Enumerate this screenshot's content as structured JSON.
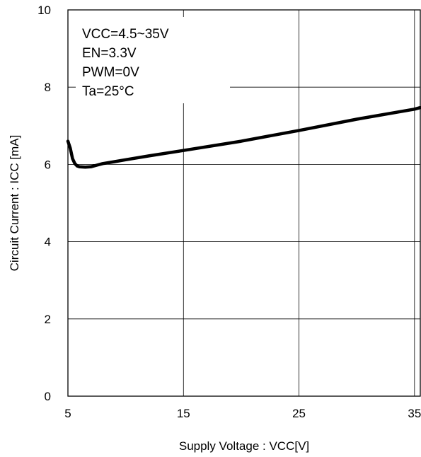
{
  "chart_data": {
    "type": "line",
    "title": "",
    "xlabel": "Supply Voltage : VCC[V]",
    "ylabel": "Circuit Current : ICC [mA]",
    "xlim": [
      5,
      35.5
    ],
    "ylim": [
      0,
      10
    ],
    "x_ticks": [
      5,
      15,
      25,
      35
    ],
    "x_tick_labels": [
      "5",
      "15",
      "25",
      "35"
    ],
    "y_ticks": [
      0,
      2,
      4,
      6,
      8,
      10
    ],
    "y_tick_labels": [
      "0",
      "2",
      "4",
      "6",
      "8",
      "10"
    ],
    "grid": true,
    "annotations": [
      "VCC=4.5~35V",
      "EN=3.3V",
      "PWM=0V",
      "Ta=25°C"
    ],
    "series": [
      {
        "x": [
          5.0,
          5.2,
          5.4,
          5.6,
          5.8,
          6.0,
          6.5,
          7.0,
          7.5,
          8.0,
          9.0,
          10.0,
          12.0,
          15.0,
          20.0,
          25.0,
          30.0,
          35.0,
          35.5
        ],
        "y": [
          6.6,
          6.42,
          6.15,
          6.02,
          5.96,
          5.94,
          5.93,
          5.94,
          5.98,
          6.02,
          6.07,
          6.12,
          6.22,
          6.36,
          6.6,
          6.88,
          7.17,
          7.43,
          7.47
        ],
        "color": "#000000"
      }
    ]
  }
}
